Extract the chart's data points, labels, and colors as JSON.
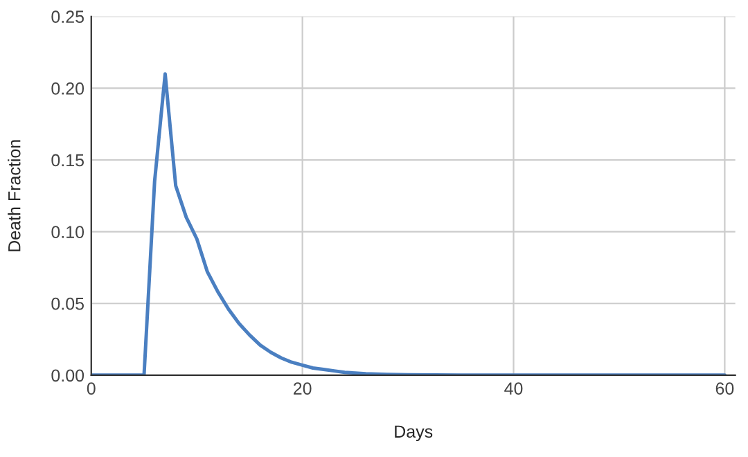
{
  "chart_data": {
    "type": "line",
    "xlabel": "Days",
    "ylabel": "Death Fraction",
    "series": [
      {
        "color": "#4a7fc1",
        "x": [
          0,
          1,
          2,
          3,
          4,
          5,
          6,
          7,
          8,
          9,
          10,
          11,
          12,
          13,
          14,
          15,
          16,
          17,
          18,
          19,
          20,
          21,
          22,
          23,
          24,
          25,
          26,
          28,
          30,
          35,
          40,
          50,
          60
        ],
        "values": [
          0,
          0,
          0,
          0,
          0,
          0,
          0.135,
          0.21,
          0.132,
          0.11,
          0.095,
          0.072,
          0.058,
          0.046,
          0.036,
          0.028,
          0.021,
          0.016,
          0.012,
          0.009,
          0.007,
          0.005,
          0.004,
          0.003,
          0.002,
          0.0015,
          0.001,
          0.0005,
          0.0003,
          0.0001,
          0,
          0,
          0
        ]
      }
    ],
    "xlim": [
      0,
      61
    ],
    "xticks": [
      0,
      20,
      40,
      60
    ],
    "ylim": [
      0,
      0.25
    ],
    "yticks": [
      {
        "value": 0,
        "label": "0.00"
      },
      {
        "value": 0.05,
        "label": "0.05"
      },
      {
        "value": 0.1,
        "label": "0.10"
      },
      {
        "value": 0.15,
        "label": "0.15"
      },
      {
        "value": 0.2,
        "label": "0.20"
      },
      {
        "value": 0.25,
        "label": "0.25"
      }
    ],
    "grid": true,
    "marker": "none",
    "line_style": "solid"
  }
}
